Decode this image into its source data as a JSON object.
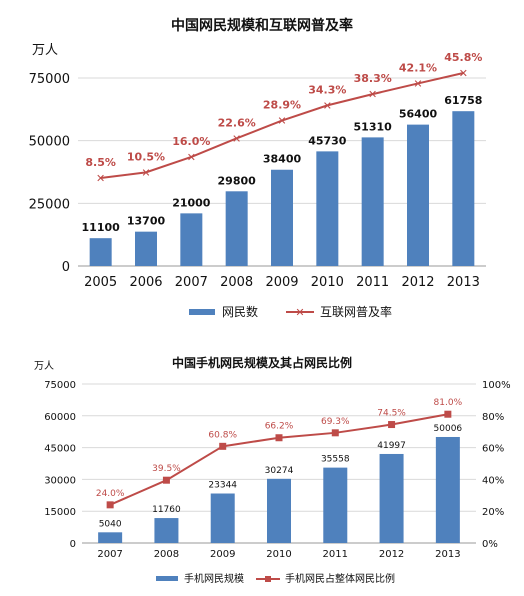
{
  "chart_data": [
    {
      "type": "bar",
      "title": "中国网民规模和互联网普及率",
      "ylabel_left": "万人",
      "categories": [
        "2005",
        "2006",
        "2007",
        "2008",
        "2009",
        "2010",
        "2011",
        "2012",
        "2013"
      ],
      "ylim": [
        0,
        75000
      ],
      "yticks": [
        0,
        25000,
        50000,
        75000
      ],
      "series": [
        {
          "name": "网民数",
          "kind": "bar",
          "color": "#4F81BD",
          "values": [
            11100,
            13700,
            21000,
            29800,
            38400,
            45730,
            51310,
            56400,
            61758
          ]
        },
        {
          "name": "互联网普及率",
          "kind": "line",
          "color": "#BE4B48",
          "values": [
            8.5,
            10.5,
            16.0,
            22.6,
            28.9,
            34.3,
            38.3,
            42.1,
            45.8
          ],
          "labels": [
            "8.5%",
            "10.5%",
            "16.0%",
            "22.6%",
            "28.9%",
            "34.3%",
            "38.3%",
            "42.1%",
            "45.8%"
          ]
        }
      ],
      "legend_position": "bottom"
    },
    {
      "type": "bar",
      "title": "中国手机网民规模及其占网民比例",
      "ylabel_left": "万人",
      "categories": [
        "2007",
        "2008",
        "2009",
        "2010",
        "2011",
        "2012",
        "2013"
      ],
      "ylim": [
        0,
        75000
      ],
      "yticks": [
        0,
        15000,
        30000,
        45000,
        60000,
        75000
      ],
      "ylim_right": [
        0,
        100
      ],
      "yticks_right": [
        "0%",
        "20%",
        "40%",
        "60%",
        "80%",
        "100%"
      ],
      "series": [
        {
          "name": "手机网民规模",
          "kind": "bar",
          "color": "#4F81BD",
          "values": [
            5040,
            11760,
            23344,
            30274,
            35558,
            41997,
            50006
          ]
        },
        {
          "name": "手机网民占整体网民比例",
          "kind": "line",
          "color": "#BE4B48",
          "values": [
            24.0,
            39.5,
            60.8,
            66.2,
            69.3,
            74.5,
            81.0
          ],
          "labels": [
            "24.0%",
            "39.5%",
            "60.8%",
            "66.2%",
            "69.3%",
            "74.5%",
            "81.0%"
          ]
        }
      ],
      "legend_position": "bottom"
    }
  ]
}
